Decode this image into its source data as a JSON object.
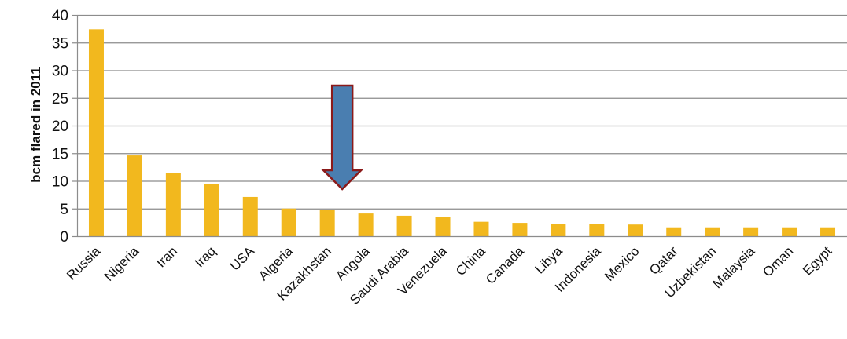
{
  "chart_data": {
    "type": "bar",
    "title": "",
    "xlabel": "",
    "ylabel": "bcm flared in 2011",
    "ylim": [
      0,
      40
    ],
    "yticks": [
      0,
      5,
      10,
      15,
      20,
      25,
      30,
      35,
      40
    ],
    "grid": true,
    "categories": [
      "Russia",
      "Nigeria",
      "Iran",
      "Iraq",
      "USA",
      "Algeria",
      "Kazakhstan",
      "Angola",
      "Saudi Arabia",
      "Venezuela",
      "China",
      "Canada",
      "Libya",
      "Indonesia",
      "Mexico",
      "Qatar",
      "Uzbekistan",
      "Malaysia",
      "Oman",
      "Egypt"
    ],
    "values": [
      37.4,
      14.6,
      11.4,
      9.4,
      7.1,
      5.0,
      4.7,
      4.1,
      3.7,
      3.5,
      2.6,
      2.4,
      2.2,
      2.2,
      2.1,
      1.6,
      1.6,
      1.6,
      1.6,
      1.6
    ],
    "bar_color": "#F2B81E",
    "annotation": {
      "type": "down-arrow",
      "points_to": "Kazakhstan",
      "fill": "#4A7EB0",
      "stroke": "#8B1A1A"
    }
  }
}
